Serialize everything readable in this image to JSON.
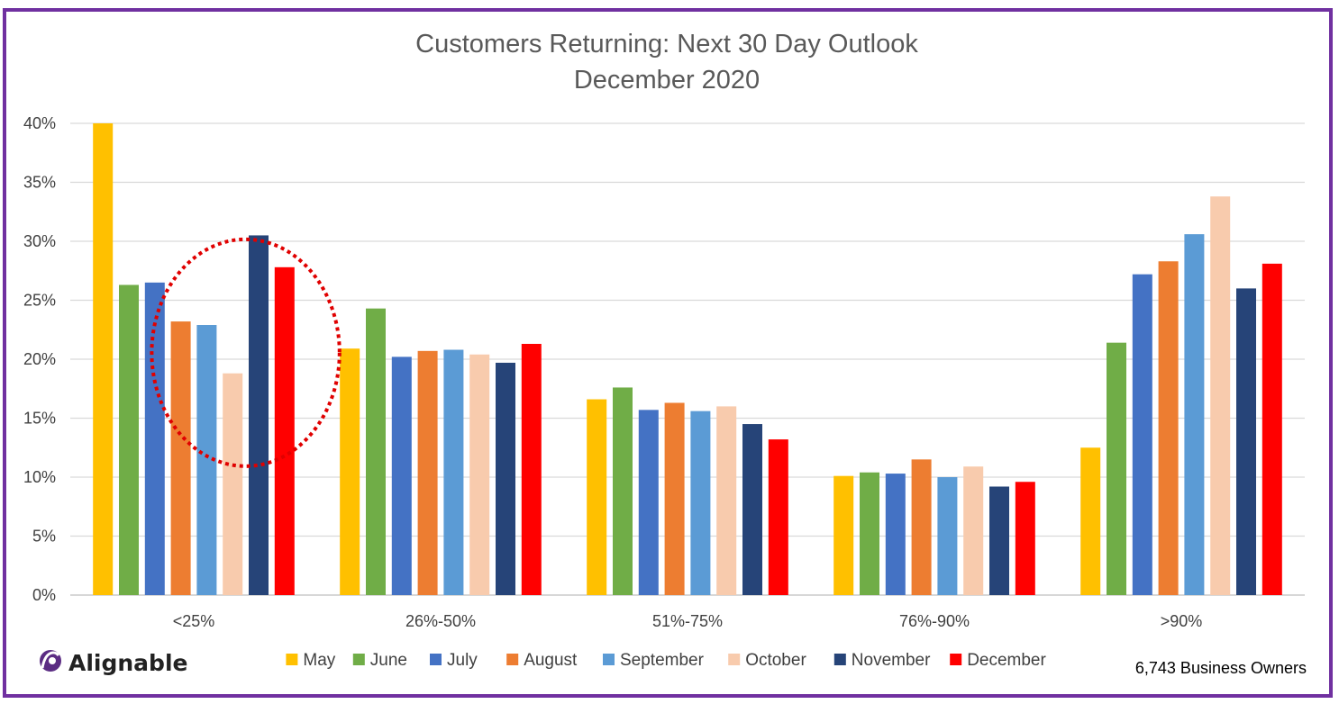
{
  "chart_data": {
    "type": "bar",
    "title": "Customers Returning: Next 30 Day Outlook",
    "subtitle": "December 2020",
    "categories": [
      "<25%",
      "26%-50%",
      "51%-75%",
      "76%-90%",
      ">90%"
    ],
    "series": [
      {
        "name": "May",
        "color": "#FFC000",
        "values": [
          40.0,
          20.9,
          16.6,
          10.1,
          12.5
        ]
      },
      {
        "name": "June",
        "color": "#70AD47",
        "values": [
          26.3,
          24.3,
          17.6,
          10.4,
          21.4
        ]
      },
      {
        "name": "July",
        "color": "#4472C4",
        "values": [
          26.5,
          20.2,
          15.7,
          10.3,
          27.2
        ]
      },
      {
        "name": "August",
        "color": "#ED7D31",
        "values": [
          23.2,
          20.7,
          16.3,
          11.5,
          28.3
        ]
      },
      {
        "name": "September",
        "color": "#5B9BD5",
        "values": [
          22.9,
          20.8,
          15.6,
          10.0,
          30.6
        ]
      },
      {
        "name": "October",
        "color": "#F8CBAD",
        "values": [
          18.8,
          20.4,
          16.0,
          10.9,
          33.8
        ]
      },
      {
        "name": "November",
        "color": "#264478",
        "values": [
          30.5,
          19.7,
          14.5,
          9.2,
          26.0
        ]
      },
      {
        "name": "December",
        "color": "#FF0000",
        "values": [
          27.8,
          21.3,
          13.2,
          9.6,
          28.1
        ]
      }
    ],
    "ylim": [
      0,
      40
    ],
    "yticks": [
      0,
      5,
      10,
      15,
      20,
      25,
      30,
      35,
      40
    ],
    "ytick_labels": [
      "0%",
      "5%",
      "10%",
      "15%",
      "20%",
      "25%",
      "30%",
      "35%",
      "40%"
    ],
    "grid": true,
    "legend": "bottom",
    "annotation": {
      "type": "dotted-ellipse",
      "color": "#E00000",
      "category": "<25%",
      "series_range": [
        "September",
        "December"
      ]
    }
  },
  "logo": {
    "text": "Alignable"
  },
  "footnote": "6,743 Business Owners",
  "colors": {
    "border": "#7030A0",
    "grid": "#D9D9D9",
    "text": "#404040"
  }
}
